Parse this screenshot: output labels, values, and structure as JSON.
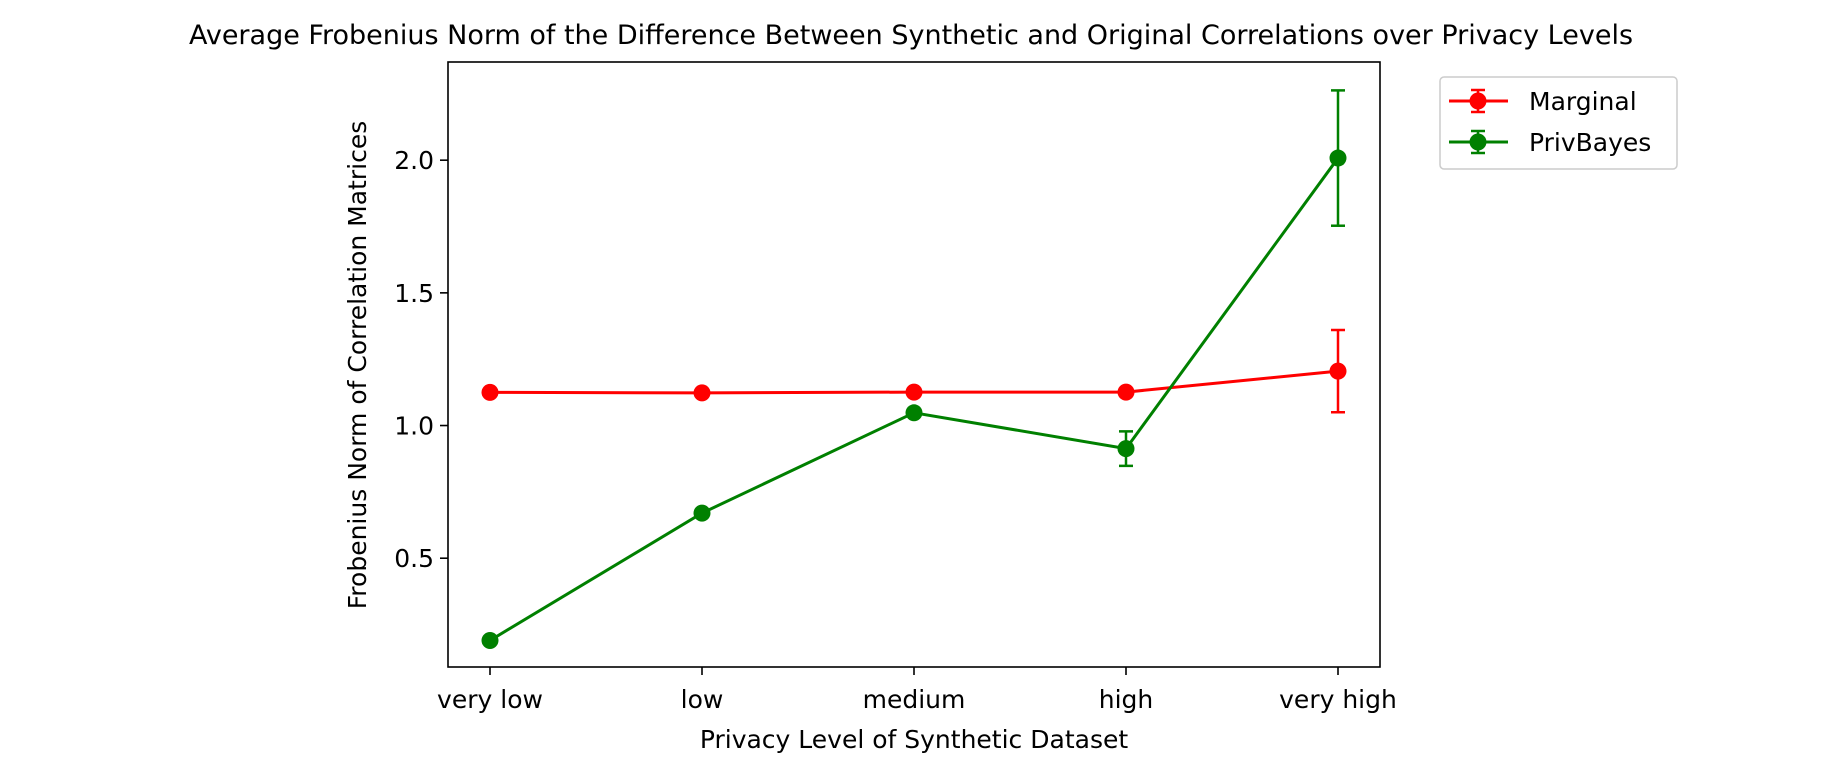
{
  "chart_data": {
    "type": "line",
    "title": "Average Frobenius Norm of the Difference Between Synthetic and Original Correlations over Privacy Levels",
    "xlabel": "Privacy Level of Synthetic Dataset",
    "ylabel": "Frobenius Norm of Correlation Matrices",
    "categories": [
      "very low",
      "low",
      "medium",
      "high",
      "very high"
    ],
    "yticks": [
      "0.5",
      "1.0",
      "1.5",
      "2.0"
    ],
    "ylim": [
      0.09,
      2.37
    ],
    "grid": false,
    "legend_position": "outside top-right",
    "series": [
      {
        "name": "Marginal",
        "color": "#ff0000",
        "marker": "circle",
        "values": [
          1.125,
          1.123,
          1.126,
          1.126,
          1.205
        ],
        "errors": [
          0.0,
          0.0,
          0.0,
          0.0,
          0.155
        ]
      },
      {
        "name": "PrivBayes",
        "color": "#008000",
        "marker": "circle",
        "values": [
          0.19,
          0.67,
          1.048,
          0.913,
          2.008
        ],
        "errors": [
          0.0,
          0.0,
          0.0,
          0.065,
          0.255
        ]
      }
    ]
  }
}
